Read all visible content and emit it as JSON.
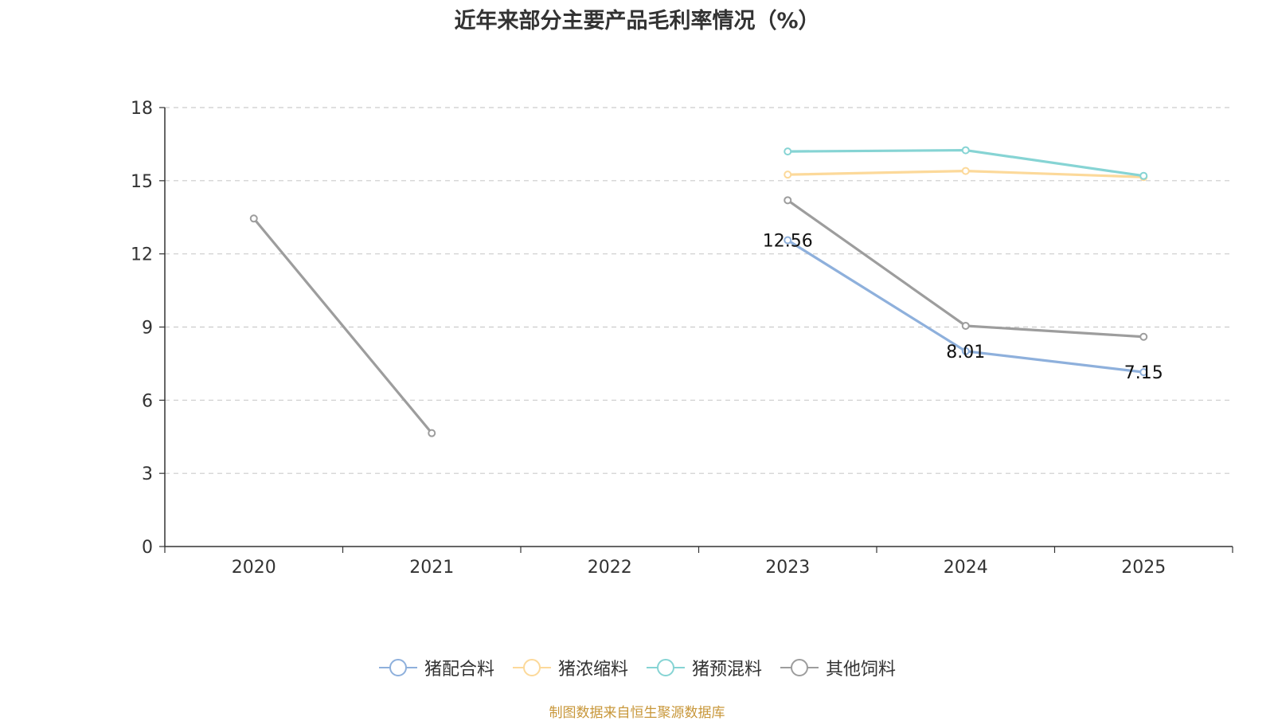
{
  "chart_data": {
    "type": "line",
    "title": "近年来部分主要产品毛利率情况（%）",
    "categories": [
      "2020",
      "2021",
      "2022",
      "2023",
      "2024",
      "2025"
    ],
    "ylim": [
      0,
      18
    ],
    "yticks": [
      0,
      3,
      6,
      9,
      12,
      15,
      18
    ],
    "grid": true,
    "legend_position": "bottom",
    "series": [
      {
        "name": "猪配合料",
        "color": "#8eb0dc",
        "values": [
          null,
          null,
          null,
          12.56,
          8.01,
          7.15
        ],
        "show_labels": true
      },
      {
        "name": "猪浓缩料",
        "color": "#fcd99a",
        "values": [
          null,
          null,
          null,
          15.25,
          15.4,
          15.15
        ],
        "show_labels": false
      },
      {
        "name": "猪预混料",
        "color": "#86d4d4",
        "values": [
          null,
          null,
          null,
          16.2,
          16.25,
          15.2
        ],
        "show_labels": false
      },
      {
        "name": "其他饲料",
        "color": "#9d9d9d",
        "values": [
          13.45,
          4.65,
          null,
          14.2,
          9.05,
          8.6
        ],
        "show_labels": false
      }
    ]
  },
  "source_note": "制图数据来自恒生聚源数据库"
}
